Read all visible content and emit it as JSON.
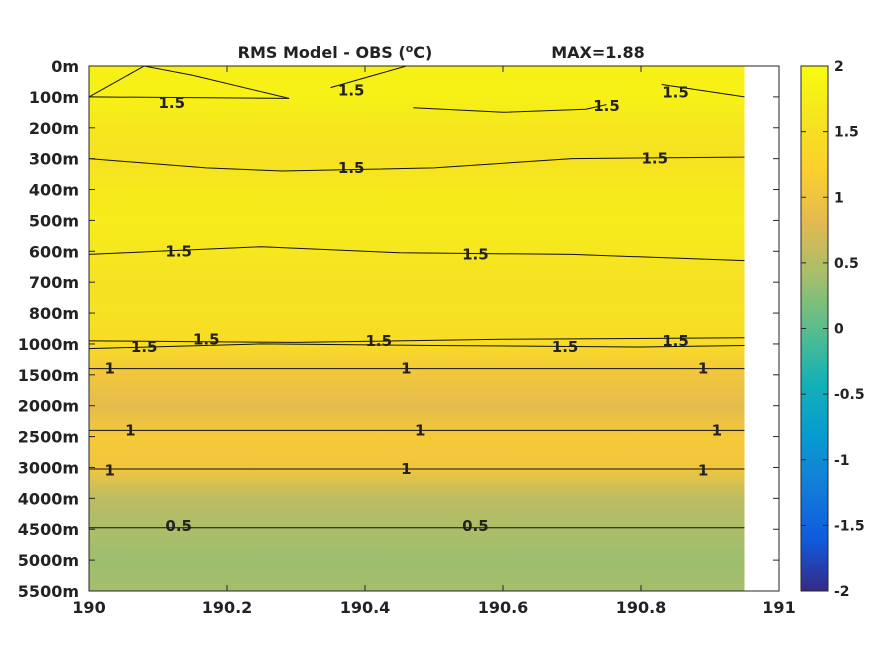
{
  "chart_data": {
    "type": "heatmap",
    "title": "RMS Model - OBS (",
    "title_unit_sup": "o",
    "title_unit_suffix": "C)",
    "max_label": "MAX=1.88",
    "x_ticks": [
      "190",
      "190.2",
      "190.4",
      "190.6",
      "190.8",
      "191"
    ],
    "x_tick_values": [
      190,
      190.2,
      190.4,
      190.6,
      190.8,
      191
    ],
    "xlim": [
      190,
      191
    ],
    "data_x_extent": [
      190,
      190.95
    ],
    "y_ticks": [
      "0m",
      "100m",
      "200m",
      "300m",
      "400m",
      "500m",
      "600m",
      "700m",
      "800m",
      "1000m",
      "1500m",
      "2000m",
      "2500m",
      "3000m",
      "4000m",
      "4500m",
      "5000m",
      "5500m"
    ],
    "y_axis_scale": "level index (irregular depth spacing)",
    "row_values": [
      1.8,
      1.82,
      1.66,
      1.55,
      1.68,
      1.74,
      1.65,
      1.52,
      1.55,
      1.45,
      1.05,
      0.85,
      1.1,
      1.05,
      0.55,
      0.45,
      0.35,
      0.4
    ],
    "colorbar": {
      "ticks": [
        "2",
        "1.5",
        "1",
        "0.5",
        "0",
        "-0.5",
        "-1",
        "-1.5",
        "-2"
      ],
      "tick_values": [
        2,
        1.5,
        1,
        0.5,
        0,
        -0.5,
        -1,
        -1.5,
        -2
      ],
      "range": [
        -2,
        2
      ],
      "colormap": "parula"
    },
    "contour_labels": [
      {
        "text": "1.5",
        "x": 190.12,
        "level": 1.2
      },
      {
        "text": "1.5",
        "x": 190.38,
        "level": 0.8
      },
      {
        "text": "1.5",
        "x": 190.75,
        "level": 1.3
      },
      {
        "text": "1.5",
        "x": 190.85,
        "level": 0.85
      },
      {
        "text": "1.5",
        "x": 190.38,
        "level": 3.3
      },
      {
        "text": "1.5",
        "x": 190.82,
        "level": 3.0
      },
      {
        "text": "1.5",
        "x": 190.13,
        "level": 6.0
      },
      {
        "text": "1.5",
        "x": 190.56,
        "level": 6.1
      },
      {
        "text": "1.5",
        "x": 190.08,
        "level": 9.1
      },
      {
        "text": "1.5",
        "x": 190.17,
        "level": 8.85
      },
      {
        "text": "1.5",
        "x": 190.42,
        "level": 8.9
      },
      {
        "text": "1.5",
        "x": 190.69,
        "level": 9.1
      },
      {
        "text": "1.5",
        "x": 190.85,
        "level": 8.9
      },
      {
        "text": "1",
        "x": 190.03,
        "level": 9.8
      },
      {
        "text": "1",
        "x": 190.46,
        "level": 9.8
      },
      {
        "text": "1",
        "x": 190.89,
        "level": 9.8
      },
      {
        "text": "1",
        "x": 190.06,
        "level": 11.8
      },
      {
        "text": "1",
        "x": 190.48,
        "level": 11.8
      },
      {
        "text": "1",
        "x": 190.91,
        "level": 11.8
      },
      {
        "text": "1",
        "x": 190.03,
        "level": 13.1
      },
      {
        "text": "1",
        "x": 190.46,
        "level": 13.05
      },
      {
        "text": "1",
        "x": 190.89,
        "level": 13.1
      },
      {
        "text": "0.5",
        "x": 190.13,
        "level": 14.9
      },
      {
        "text": "0.5",
        "x": 190.56,
        "level": 14.9
      }
    ],
    "contour_lines": [
      [
        [
          190,
          1
        ],
        [
          190.08,
          0
        ],
        [
          190.15,
          0.3
        ],
        [
          190.29,
          1.05
        ]
      ],
      [
        [
          190.35,
          0.7
        ],
        [
          190.46,
          0
        ]
      ],
      [
        [
          190,
          1
        ],
        [
          190.29,
          1.05
        ]
      ],
      [
        [
          190.47,
          1.35
        ],
        [
          190.6,
          1.5
        ],
        [
          190.72,
          1.4
        ],
        [
          190.75,
          1.25
        ]
      ],
      [
        [
          190.83,
          0.6
        ],
        [
          190.95,
          1.0
        ]
      ],
      [
        [
          190,
          3.0
        ],
        [
          190.17,
          3.3
        ],
        [
          190.28,
          3.4
        ],
        [
          190.5,
          3.3
        ],
        [
          190.7,
          3.0
        ],
        [
          190.95,
          2.95
        ]
      ],
      [
        [
          190,
          6.1
        ],
        [
          190.1,
          6.0
        ],
        [
          190.25,
          5.85
        ],
        [
          190.45,
          6.05
        ],
        [
          190.7,
          6.1
        ],
        [
          190.95,
          6.3
        ]
      ],
      [
        [
          190,
          8.9
        ],
        [
          190.3,
          8.95
        ],
        [
          190.6,
          8.85
        ],
        [
          190.95,
          8.8
        ]
      ],
      [
        [
          190,
          9.15
        ],
        [
          190.25,
          9.0
        ],
        [
          190.5,
          9.05
        ],
        [
          190.8,
          9.1
        ],
        [
          190.95,
          9.05
        ]
      ],
      [
        [
          190,
          9.8
        ],
        [
          190.95,
          9.8
        ]
      ],
      [
        [
          190,
          11.8
        ],
        [
          190.95,
          11.8
        ]
      ],
      [
        [
          190,
          13.05
        ],
        [
          190.95,
          13.05
        ]
      ],
      [
        [
          190,
          14.95
        ],
        [
          190.95,
          14.95
        ]
      ]
    ]
  }
}
